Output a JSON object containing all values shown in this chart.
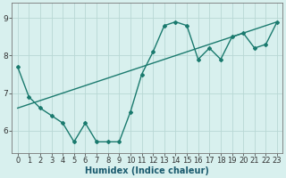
{
  "line1_x": [
    0,
    1,
    2,
    3,
    4,
    5,
    6,
    7,
    8,
    9,
    10,
    11,
    12,
    13,
    14,
    15,
    16,
    17,
    18,
    19,
    20,
    21,
    22,
    23
  ],
  "line1_y": [
    7.7,
    6.9,
    6.6,
    6.4,
    6.2,
    5.7,
    6.2,
    5.7,
    5.7,
    5.7,
    6.5,
    7.5,
    8.1,
    8.8,
    8.9,
    8.8,
    7.9,
    8.2,
    7.9,
    8.5,
    8.6,
    8.2,
    8.3,
    8.9
  ],
  "line2_x": [
    0,
    23
  ],
  "line2_y": [
    6.6,
    8.9
  ],
  "line_color": "#1a7a6e",
  "bg_color": "#d8f0ee",
  "grid_color": "#b8d8d4",
  "xlabel": "Humidex (Indice chaleur)",
  "ylim": [
    5.4,
    9.4
  ],
  "xlim": [
    -0.5,
    23.5
  ],
  "yticks": [
    6,
    7,
    8,
    9
  ],
  "xticks": [
    0,
    1,
    2,
    3,
    4,
    5,
    6,
    7,
    8,
    9,
    10,
    11,
    12,
    13,
    14,
    15,
    16,
    17,
    18,
    19,
    20,
    21,
    22,
    23
  ],
  "xtick_labels": [
    "0",
    "1",
    "2",
    "3",
    "4",
    "5",
    "6",
    "7",
    "8",
    "9",
    "10",
    "11",
    "12",
    "13",
    "14",
    "15",
    "16",
    "17",
    "18",
    "19",
    "20",
    "21",
    "22",
    "23"
  ],
  "marker": "D",
  "marker_size": 2.0,
  "linewidth": 1.0,
  "tick_fontsize": 6.0,
  "xlabel_fontsize": 7.0
}
